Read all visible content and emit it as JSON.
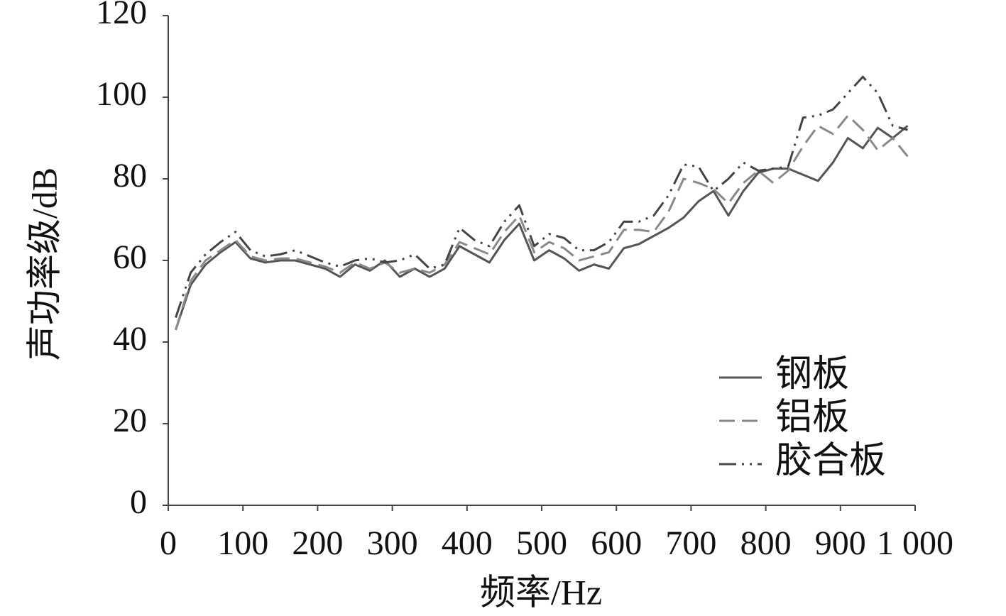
{
  "chart_data": {
    "type": "line",
    "x_label": "频率/Hz",
    "y_label": "声功率级/dB",
    "x": [
      10,
      30,
      50,
      70,
      90,
      110,
      130,
      150,
      170,
      190,
      210,
      230,
      250,
      270,
      290,
      310,
      330,
      350,
      370,
      390,
      410,
      430,
      450,
      470,
      490,
      510,
      530,
      550,
      570,
      590,
      610,
      630,
      650,
      670,
      690,
      710,
      730,
      750,
      770,
      790,
      810,
      830,
      850,
      870,
      890,
      910,
      930,
      950,
      970,
      990
    ],
    "series": [
      {
        "name": "钢板",
        "color": "#555555",
        "linestyle": "solid",
        "values": [
          43,
          54,
          59,
          62,
          64.5,
          60.5,
          59.5,
          60,
          60,
          59,
          58,
          56,
          59,
          57.5,
          60,
          56,
          58,
          56,
          58,
          63.5,
          61.5,
          59.5,
          65,
          69,
          60,
          62.5,
          60.5,
          57.5,
          59,
          58,
          63,
          64,
          66,
          68,
          70.5,
          74.5,
          77,
          71,
          77,
          81.5,
          82.5,
          82.5,
          81,
          79.5,
          84,
          90,
          87.5,
          92.5,
          90,
          93
        ]
      },
      {
        "name": "铝板",
        "color": "#8a8a8a",
        "linestyle": "dashed",
        "values": [
          43,
          55,
          60,
          62.5,
          65,
          61,
          60,
          60.5,
          60.5,
          59.5,
          58.5,
          57,
          59.5,
          58,
          59.5,
          57,
          58,
          57,
          59,
          64.5,
          63,
          61.5,
          67,
          71,
          62,
          64.5,
          63,
          60,
          61,
          62,
          67.5,
          67.5,
          67,
          72,
          80,
          79,
          77.5,
          74,
          79,
          82,
          79,
          82,
          88,
          93,
          91,
          95.5,
          92,
          87,
          90,
          85.5
        ]
      },
      {
        "name": "胶合板",
        "color": "#444444",
        "linestyle": "dashdot",
        "values": [
          46,
          57,
          61.5,
          64.5,
          67,
          62.5,
          61,
          61.5,
          62.5,
          61,
          59.5,
          58.5,
          60,
          60.5,
          59.5,
          60,
          61.5,
          58,
          59,
          68,
          65,
          63.5,
          69.5,
          73.5,
          63.5,
          66.5,
          65.5,
          62.5,
          62.5,
          64.5,
          69.5,
          69.5,
          71,
          76,
          83.5,
          83,
          77,
          80,
          84,
          82,
          82.5,
          83,
          95,
          95.5,
          97,
          101,
          105,
          101,
          93,
          92
        ]
      }
    ],
    "xlim": [
      0,
      1000
    ],
    "xticks": [
      0,
      100,
      200,
      300,
      400,
      500,
      600,
      700,
      800,
      900,
      {
        "value": 1000,
        "label": "1 000"
      }
    ],
    "ylim": [
      0,
      120
    ],
    "yticks": [
      0,
      20,
      40,
      60,
      80,
      100,
      120
    ],
    "grid": false,
    "legend": "lower right"
  }
}
